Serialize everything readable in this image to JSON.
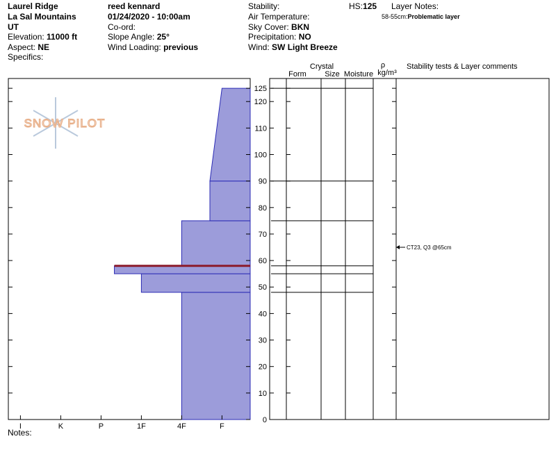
{
  "header": {
    "site": "Laurel Ridge",
    "range": "La Sal Mountains",
    "state": "UT",
    "elevation": {
      "label": "Elevation:",
      "value": "11000 ft"
    },
    "aspect": {
      "label": "Aspect:",
      "value": "NE"
    },
    "specifics": {
      "label": "Specifics:"
    },
    "observer": "reed kennard",
    "datetime": "01/24/2020 - 10:00am",
    "coord": {
      "label": "Co-ord:"
    },
    "slope": {
      "label": "Slope Angle:",
      "value": "25°"
    },
    "wind_loading": {
      "label": "Wind Loading:",
      "value": "previous"
    },
    "stability": {
      "label": "Stability:"
    },
    "air_temperature": {
      "label": "Air Temperature:"
    },
    "sky_cover": {
      "label": "Sky Cover:",
      "value": "BKN"
    },
    "precipitation": {
      "label": "Precipitation:",
      "value": "NO"
    },
    "wind": {
      "label": "Wind:",
      "value": "SW Light Breeze"
    },
    "hs": {
      "label": "HS:",
      "value": 125
    },
    "layer_notes": {
      "label": "Layer Notes:",
      "notes": [
        {
          "range": "58-55cm:",
          "text": "Problematic layer"
        }
      ]
    }
  },
  "notes": {
    "label": "Notes:"
  },
  "logo": "SNOW PILOT",
  "chart_data": {
    "type": "snow-profile",
    "ylim": [
      0,
      128.7
    ],
    "yticks": [
      0,
      10,
      20,
      30,
      40,
      50,
      60,
      70,
      80,
      90,
      100,
      110,
      120,
      125
    ],
    "xlim": [
      0.3,
      6.3
    ],
    "xticks": [
      {
        "value": 6,
        "label": "I"
      },
      {
        "value": 5,
        "label": "K"
      },
      {
        "value": 4,
        "label": "P"
      },
      {
        "value": 3,
        "label": "1F"
      },
      {
        "value": 2,
        "label": "4F"
      },
      {
        "value": 1,
        "label": "F"
      }
    ],
    "columns": {
      "form": "Form",
      "crystal": "Crystal",
      "size": "Size",
      "moisture": "Moisture",
      "density": "ρ",
      "density_unit": "kg/m³",
      "comments": "Stability tests & Layer comments"
    },
    "color": "#9c9cda",
    "edge_color": "#2b2bb5",
    "layers": [
      {
        "bottom": 0,
        "top": 48,
        "hardness_bottom": 2,
        "hardness_top": 2
      },
      {
        "bottom": 48,
        "top": 55,
        "hardness_bottom": 3,
        "hardness_top": 3
      },
      {
        "bottom": 55,
        "top": 58,
        "hardness_bottom": 3.67,
        "hardness_top": 3.67
      },
      {
        "bottom": 58,
        "top": 75,
        "hardness_bottom": 2,
        "hardness_top": 2
      },
      {
        "bottom": 75,
        "top": 90,
        "hardness_bottom": 1.3,
        "hardness_top": 1.3
      },
      {
        "bottom": 90,
        "top": 125,
        "hardness_bottom": 1.3,
        "hardness_top": 1
      }
    ],
    "highlight": {
      "depth": 58,
      "color": "#8b1a2a"
    },
    "tests": [
      {
        "label": "CT23, Q3 @65cm",
        "depth": 65
      }
    ]
  }
}
